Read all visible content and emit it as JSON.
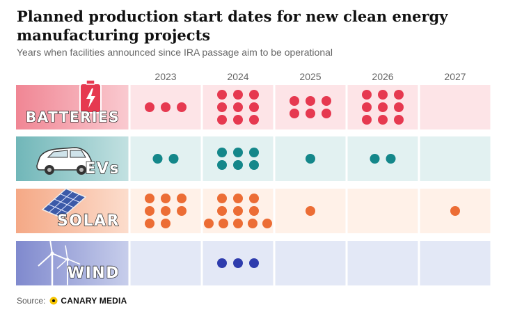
{
  "title": "Planned production start dates for new clean energy manufacturing projects",
  "subtitle": "Years when facilities announced since IRA passage aim to be operational",
  "source_label": "Source:",
  "source_brand": "CANARY MEDIA",
  "colors": {
    "batteries_bg": "#fde4e7",
    "batteries_accent": "#e63950",
    "evs_bg": "#e2f1f1",
    "evs_accent": "#14878a",
    "solar_bg": "#fff1e8",
    "solar_accent": "#ec6d35",
    "wind_bg": "#e3e8f6",
    "wind_accent": "#2e3cad",
    "year_text": "#666666"
  },
  "chart_data": {
    "type": "dot-matrix",
    "title": "Planned production start dates for new clean energy manufacturing projects",
    "subtitle": "Years when facilities announced since IRA passage aim to be operational",
    "categories": [
      "2023",
      "2024",
      "2025",
      "2026",
      "2027"
    ],
    "series": [
      {
        "name": "BATTERIES",
        "icon": "battery-icon",
        "values": [
          3,
          9,
          6,
          9,
          0
        ]
      },
      {
        "name": "EVs",
        "icon": "car-icon",
        "values": [
          2,
          6,
          1,
          2,
          0
        ]
      },
      {
        "name": "SOLAR",
        "icon": "solar-panel-icon",
        "values": [
          8,
          11,
          1,
          0,
          1
        ]
      },
      {
        "name": "WIND",
        "icon": "wind-turbine-icon",
        "values": [
          0,
          3,
          0,
          0,
          0
        ]
      }
    ]
  }
}
